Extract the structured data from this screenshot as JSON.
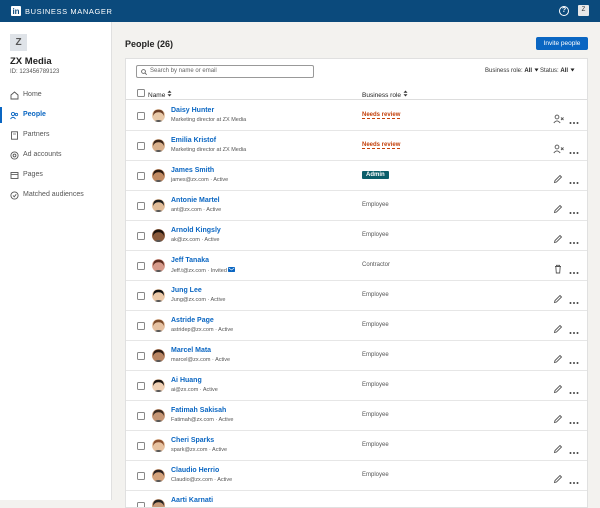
{
  "topbar": {
    "logo": "in",
    "title": "BUSINESS MANAGER",
    "help": "?",
    "avatar": "Z"
  },
  "sidebar": {
    "avatar": "Z",
    "account_name": "ZX Media",
    "account_id": "ID: 123456789123",
    "nav": [
      "Home",
      "People",
      "Partners",
      "Ad accounts",
      "Pages",
      "Matched audiences"
    ]
  },
  "main": {
    "title": "People (26)",
    "invite_button": "Invite people",
    "search_placeholder": "Search by name or email",
    "filters": [
      {
        "label": "Business role:",
        "value": "All"
      },
      {
        "label": "Status:",
        "value": "All"
      }
    ],
    "columns": [
      "Name",
      "Business role"
    ],
    "rows": [
      {
        "name": "Daisy Hunter",
        "detail": "Marketing director at ZX Media",
        "role": "Needs review"
      },
      {
        "name": "Emilia Kristof",
        "detail": "Marketing director at ZX Media",
        "role": "Needs review"
      },
      {
        "name": "James Smith",
        "detail": "james@zx.com · Active",
        "role": "Admin"
      },
      {
        "name": "Antonie Martel",
        "detail": "ant@zx.com · Active",
        "role": "Employee"
      },
      {
        "name": "Arnold Kingsly",
        "detail": "ak@zx.com · Active",
        "role": "Employee"
      },
      {
        "name": "Jeff Tanaka",
        "detail": "Jeff.t@zx.com · Invited",
        "role": "Contractor"
      },
      {
        "name": "Jung Lee",
        "detail": "Jung@zx.com · Active",
        "role": "Employee"
      },
      {
        "name": "Astride Page",
        "detail": "astridep@zx.com · Active",
        "role": "Employee"
      },
      {
        "name": "Marcel Mata",
        "detail": "marcel@zx.com · Active",
        "role": "Employee"
      },
      {
        "name": "Ai Huang",
        "detail": "ai@zx.com · Active",
        "role": "Employee"
      },
      {
        "name": "Fatimah Sakisah",
        "detail": "Fatimah@zx.com · Active",
        "role": "Employee"
      },
      {
        "name": "Cheri Sparks",
        "detail": "spark@zx.com · Active",
        "role": "Employee"
      },
      {
        "name": "Claudio Herrio",
        "detail": "Claudio@zx.com · Active",
        "role": "Employee"
      },
      {
        "name": "Aarti Karnati"
      }
    ]
  }
}
